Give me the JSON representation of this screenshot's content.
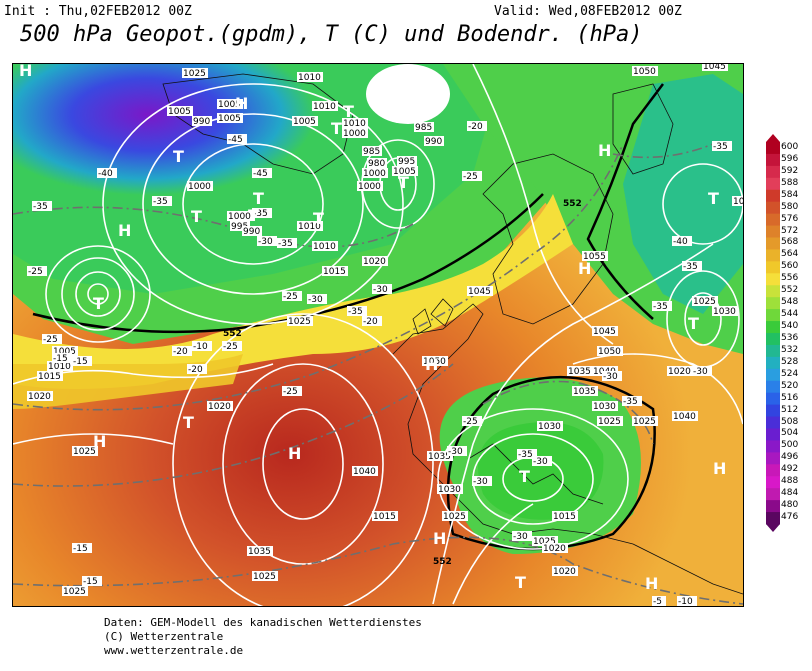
{
  "header": {
    "init": "Init : Thu,02FEB2012 00Z",
    "valid": "Valid: Wed,08FEB2012 00Z",
    "title": "500 hPa Geopot.(gpdm), T (C) und Bodendr. (hPa)"
  },
  "colorbar": {
    "ticks": [
      "600",
      "596",
      "592",
      "588",
      "584",
      "580",
      "576",
      "572",
      "568",
      "564",
      "560",
      "556",
      "552",
      "548",
      "544",
      "540",
      "536",
      "532",
      "528",
      "524",
      "520",
      "516",
      "512",
      "508",
      "504",
      "500",
      "496",
      "492",
      "488",
      "484",
      "480",
      "476"
    ],
    "colors": [
      "#b00020",
      "#c4143a",
      "#d62a4c",
      "#e23e5a",
      "#cf3a2a",
      "#d2522a",
      "#d86a2a",
      "#de822a",
      "#e49a2a",
      "#eab22a",
      "#f0c82a",
      "#f5df3a",
      "#c9e23a",
      "#9ee03a",
      "#6fd83a",
      "#3acb3a",
      "#22c062",
      "#22b892",
      "#22b0c0",
      "#2a9ee0",
      "#2a80e8",
      "#2a62e8",
      "#3244e0",
      "#4a2ed8",
      "#6a1ed0",
      "#8a18c8",
      "#a818c0",
      "#c818b8",
      "#d818c8",
      "#c01ab0",
      "#8a0a8a",
      "#5a0660"
    ]
  },
  "map": {
    "pressure_labels": [
      "1025",
      "1010",
      "1005",
      "1005",
      "1010",
      "1005",
      "1010",
      "1000",
      "985",
      "990",
      "985",
      "980",
      "1000",
      "1000",
      "995",
      "1005",
      "1005",
      "990",
      "1000",
      "1000",
      "995",
      "990",
      "1010",
      "1010",
      "1020",
      "1015",
      "1025",
      "1005",
      "1010",
      "1015",
      "1020",
      "1020",
      "1025",
      "1040",
      "1050",
      "1045",
      "1035",
      "1030",
      "1025",
      "1035",
      "1030",
      "1025",
      "1035",
      "1055",
      "1045",
      "1050",
      "1040",
      "1035",
      "1030",
      "1025",
      "1015",
      "1025",
      "1020",
      "1030",
      "1050",
      "1045",
      "1025",
      "1030",
      "1040",
      "1020",
      "1025",
      "1025",
      "1015",
      "1020"
    ],
    "temperature_labels": [
      "-40",
      "-45",
      "-35",
      "-35",
      "-45",
      "-35",
      "-30",
      "-35",
      "-25",
      "-20",
      "-30",
      "-25",
      "-30",
      "-35",
      "-25",
      "-25",
      "-20",
      "-25",
      "-15",
      "-15",
      "-20",
      "-10",
      "-30",
      "-25",
      "-30",
      "-35",
      "-30",
      "-35",
      "-30",
      "-35",
      "-40",
      "-35",
      "-30",
      "-20",
      "-25",
      "-15",
      "-10",
      "-5",
      "-15",
      "-30",
      "-35"
    ],
    "high_label": "H",
    "low_label": "T",
    "contour_labels": [
      "552",
      "552",
      "552"
    ]
  },
  "credits": [
    "Daten: GEM-Modell des kanadischen Wetterdienstes",
    "(C) Wetterzentrale",
    "www.wetterzentrale.de"
  ]
}
